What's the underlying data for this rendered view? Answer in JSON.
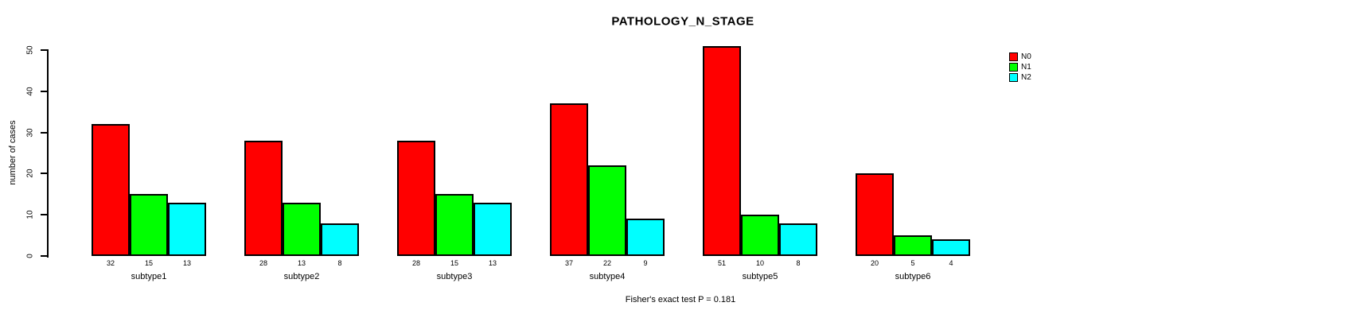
{
  "chart_data": {
    "type": "bar",
    "title": "PATHOLOGY_N_STAGE",
    "xlabel": "",
    "ylabel": "number of cases",
    "annotation": "Fisher's exact test P = 0.181",
    "categories": [
      "subtype1",
      "subtype2",
      "subtype3",
      "subtype4",
      "subtype5",
      "subtype6"
    ],
    "series": [
      {
        "name": "N0",
        "color": "#FF0000",
        "values": [
          32,
          28,
          28,
          37,
          51,
          20
        ]
      },
      {
        "name": "N1",
        "color": "#00FF00",
        "values": [
          15,
          13,
          15,
          22,
          10,
          5
        ]
      },
      {
        "name": "N2",
        "color": "#00FFFF",
        "values": [
          13,
          8,
          13,
          9,
          8,
          4
        ]
      }
    ],
    "ylim": [
      0,
      50
    ],
    "yticks": [
      0,
      10,
      20,
      30,
      40,
      50
    ],
    "bar_value_labels": true,
    "grid": false,
    "legend_position": "top-right"
  }
}
